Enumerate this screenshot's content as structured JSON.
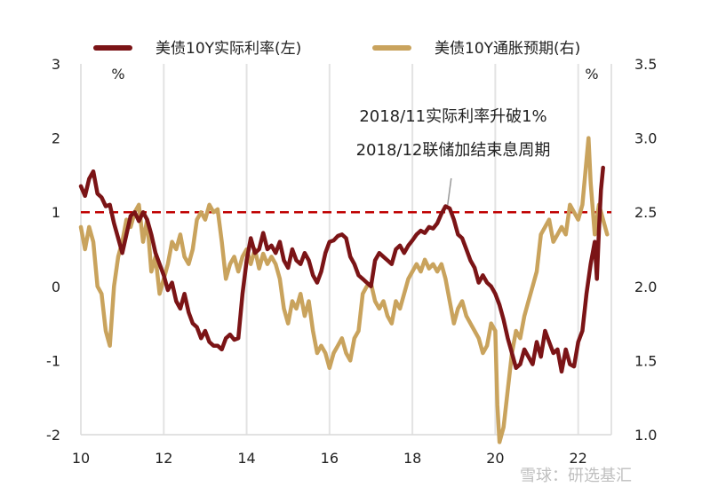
{
  "chart_data": {
    "type": "line",
    "title": "",
    "xlabel": "",
    "x_ticks": [
      "10",
      "12",
      "14",
      "16",
      "18",
      "20",
      "22"
    ],
    "xlim": [
      2010,
      2022.8
    ],
    "y_left": {
      "unit": "%",
      "ylim": [
        -2,
        3
      ],
      "ticks": [
        "3",
        "2",
        "1",
        "0",
        "-1",
        "-2"
      ]
    },
    "y_right": {
      "unit": "%",
      "ylim": [
        1.0,
        3.5
      ],
      "ticks": [
        "3.5",
        "3.0",
        "2.5",
        "2.0",
        "1.5",
        "1.0"
      ]
    },
    "grid": "vertical",
    "legend_position": "top",
    "reference_line": {
      "axis": "left",
      "value": 1.0,
      "color": "#c00000",
      "style": "dashed"
    },
    "annotation": {
      "lines": [
        "2018/11实际利率升破1%",
        "2018/12联储加结束息周期"
      ],
      "point": [
        2018.85,
        1.05
      ]
    },
    "watermark": "雪球：研选基汇",
    "series": [
      {
        "name": "美债10Y实际利率(左)",
        "axis": "left",
        "color": "#7b1416",
        "points": [
          [
            2010.0,
            1.35
          ],
          [
            2010.1,
            1.22
          ],
          [
            2010.2,
            1.45
          ],
          [
            2010.3,
            1.55
          ],
          [
            2010.4,
            1.25
          ],
          [
            2010.5,
            1.2
          ],
          [
            2010.6,
            1.08
          ],
          [
            2010.7,
            1.1
          ],
          [
            2010.8,
            0.85
          ],
          [
            2010.9,
            0.65
          ],
          [
            2011.0,
            0.45
          ],
          [
            2011.1,
            0.7
          ],
          [
            2011.2,
            0.95
          ],
          [
            2011.3,
            1.0
          ],
          [
            2011.4,
            0.88
          ],
          [
            2011.5,
            1.0
          ],
          [
            2011.6,
            0.9
          ],
          [
            2011.7,
            0.7
          ],
          [
            2011.8,
            0.45
          ],
          [
            2011.9,
            0.3
          ],
          [
            2012.0,
            0.15
          ],
          [
            2012.1,
            -0.05
          ],
          [
            2012.2,
            0.05
          ],
          [
            2012.3,
            -0.2
          ],
          [
            2012.4,
            -0.3
          ],
          [
            2012.5,
            -0.1
          ],
          [
            2012.6,
            -0.35
          ],
          [
            2012.7,
            -0.5
          ],
          [
            2012.8,
            -0.55
          ],
          [
            2012.9,
            -0.7
          ],
          [
            2013.0,
            -0.6
          ],
          [
            2013.1,
            -0.75
          ],
          [
            2013.2,
            -0.8
          ],
          [
            2013.3,
            -0.8
          ],
          [
            2013.4,
            -0.85
          ],
          [
            2013.5,
            -0.7
          ],
          [
            2013.6,
            -0.65
          ],
          [
            2013.7,
            -0.72
          ],
          [
            2013.8,
            -0.7
          ],
          [
            2013.9,
            -0.1
          ],
          [
            2014.0,
            0.35
          ],
          [
            2014.1,
            0.65
          ],
          [
            2014.2,
            0.45
          ],
          [
            2014.3,
            0.5
          ],
          [
            2014.4,
            0.72
          ],
          [
            2014.5,
            0.5
          ],
          [
            2014.6,
            0.55
          ],
          [
            2014.7,
            0.45
          ],
          [
            2014.8,
            0.6
          ],
          [
            2014.9,
            0.35
          ],
          [
            2015.0,
            0.25
          ],
          [
            2015.1,
            0.5
          ],
          [
            2015.2,
            0.35
          ],
          [
            2015.3,
            0.3
          ],
          [
            2015.4,
            0.45
          ],
          [
            2015.5,
            0.35
          ],
          [
            2015.6,
            0.15
          ],
          [
            2015.7,
            0.05
          ],
          [
            2015.8,
            0.2
          ],
          [
            2015.9,
            0.45
          ],
          [
            2016.0,
            0.6
          ],
          [
            2016.1,
            0.62
          ],
          [
            2016.2,
            0.68
          ],
          [
            2016.3,
            0.7
          ],
          [
            2016.4,
            0.65
          ],
          [
            2016.5,
            0.4
          ],
          [
            2016.6,
            0.3
          ],
          [
            2016.7,
            0.15
          ],
          [
            2016.8,
            0.1
          ],
          [
            2016.9,
            0.05
          ],
          [
            2017.0,
            0.0
          ],
          [
            2017.1,
            0.35
          ],
          [
            2017.2,
            0.45
          ],
          [
            2017.3,
            0.4
          ],
          [
            2017.4,
            0.35
          ],
          [
            2017.5,
            0.3
          ],
          [
            2017.6,
            0.5
          ],
          [
            2017.7,
            0.55
          ],
          [
            2017.8,
            0.45
          ],
          [
            2017.9,
            0.55
          ],
          [
            2018.0,
            0.62
          ],
          [
            2018.1,
            0.7
          ],
          [
            2018.2,
            0.75
          ],
          [
            2018.3,
            0.72
          ],
          [
            2018.4,
            0.8
          ],
          [
            2018.5,
            0.78
          ],
          [
            2018.6,
            0.85
          ],
          [
            2018.7,
            0.98
          ],
          [
            2018.8,
            1.08
          ],
          [
            2018.9,
            1.05
          ],
          [
            2019.0,
            0.9
          ],
          [
            2019.1,
            0.7
          ],
          [
            2019.2,
            0.65
          ],
          [
            2019.3,
            0.5
          ],
          [
            2019.4,
            0.35
          ],
          [
            2019.5,
            0.25
          ],
          [
            2019.6,
            0.05
          ],
          [
            2019.7,
            0.15
          ],
          [
            2019.8,
            0.05
          ],
          [
            2019.9,
            0.0
          ],
          [
            2020.0,
            -0.1
          ],
          [
            2020.1,
            -0.25
          ],
          [
            2020.2,
            -0.45
          ],
          [
            2020.3,
            -0.7
          ],
          [
            2020.4,
            -0.9
          ],
          [
            2020.5,
            -1.1
          ],
          [
            2020.6,
            -1.05
          ],
          [
            2020.7,
            -0.85
          ],
          [
            2020.8,
            -0.95
          ],
          [
            2020.9,
            -1.05
          ],
          [
            2021.0,
            -0.75
          ],
          [
            2021.1,
            -0.95
          ],
          [
            2021.2,
            -0.6
          ],
          [
            2021.3,
            -0.75
          ],
          [
            2021.4,
            -0.9
          ],
          [
            2021.5,
            -0.85
          ],
          [
            2021.6,
            -1.15
          ],
          [
            2021.7,
            -0.85
          ],
          [
            2021.8,
            -1.05
          ],
          [
            2021.9,
            -1.08
          ],
          [
            2022.0,
            -0.75
          ],
          [
            2022.1,
            -0.6
          ],
          [
            2022.2,
            -0.1
          ],
          [
            2022.3,
            0.3
          ],
          [
            2022.4,
            0.6
          ],
          [
            2022.45,
            0.1
          ],
          [
            2022.5,
            0.75
          ],
          [
            2022.55,
            1.3
          ],
          [
            2022.6,
            1.6
          ]
        ]
      },
      {
        "name": "美债10Y通胀预期(右)",
        "axis": "right",
        "color": "#c9a35d",
        "points": [
          [
            2010.0,
            2.4
          ],
          [
            2010.1,
            2.25
          ],
          [
            2010.2,
            2.4
          ],
          [
            2010.3,
            2.3
          ],
          [
            2010.4,
            2.0
          ],
          [
            2010.5,
            1.95
          ],
          [
            2010.6,
            1.7
          ],
          [
            2010.7,
            1.6
          ],
          [
            2010.8,
            2.0
          ],
          [
            2010.9,
            2.2
          ],
          [
            2011.0,
            2.3
          ],
          [
            2011.1,
            2.45
          ],
          [
            2011.2,
            2.4
          ],
          [
            2011.3,
            2.5
          ],
          [
            2011.4,
            2.55
          ],
          [
            2011.5,
            2.3
          ],
          [
            2011.6,
            2.45
          ],
          [
            2011.7,
            2.1
          ],
          [
            2011.8,
            2.2
          ],
          [
            2011.9,
            1.95
          ],
          [
            2012.0,
            2.05
          ],
          [
            2012.1,
            2.15
          ],
          [
            2012.2,
            2.3
          ],
          [
            2012.3,
            2.25
          ],
          [
            2012.4,
            2.35
          ],
          [
            2012.5,
            2.2
          ],
          [
            2012.6,
            2.15
          ],
          [
            2012.7,
            2.25
          ],
          [
            2012.8,
            2.45
          ],
          [
            2012.9,
            2.5
          ],
          [
            2013.0,
            2.45
          ],
          [
            2013.1,
            2.55
          ],
          [
            2013.2,
            2.5
          ],
          [
            2013.3,
            2.52
          ],
          [
            2013.4,
            2.3
          ],
          [
            2013.5,
            2.05
          ],
          [
            2013.6,
            2.15
          ],
          [
            2013.7,
            2.2
          ],
          [
            2013.8,
            2.1
          ],
          [
            2013.9,
            2.2
          ],
          [
            2014.0,
            2.25
          ],
          [
            2014.1,
            2.15
          ],
          [
            2014.2,
            2.25
          ],
          [
            2014.3,
            2.12
          ],
          [
            2014.4,
            2.22
          ],
          [
            2014.5,
            2.15
          ],
          [
            2014.6,
            2.2
          ],
          [
            2014.7,
            2.15
          ],
          [
            2014.8,
            2.05
          ],
          [
            2014.9,
            1.85
          ],
          [
            2015.0,
            1.75
          ],
          [
            2015.1,
            1.9
          ],
          [
            2015.2,
            1.85
          ],
          [
            2015.3,
            1.95
          ],
          [
            2015.4,
            1.8
          ],
          [
            2015.5,
            1.9
          ],
          [
            2015.6,
            1.7
          ],
          [
            2015.7,
            1.55
          ],
          [
            2015.8,
            1.6
          ],
          [
            2015.9,
            1.55
          ],
          [
            2016.0,
            1.45
          ],
          [
            2016.1,
            1.55
          ],
          [
            2016.2,
            1.6
          ],
          [
            2016.3,
            1.65
          ],
          [
            2016.4,
            1.55
          ],
          [
            2016.5,
            1.5
          ],
          [
            2016.6,
            1.65
          ],
          [
            2016.7,
            1.7
          ],
          [
            2016.8,
            1.95
          ],
          [
            2016.9,
            2.0
          ],
          [
            2017.0,
            2.02
          ],
          [
            2017.1,
            1.9
          ],
          [
            2017.2,
            1.85
          ],
          [
            2017.3,
            1.9
          ],
          [
            2017.4,
            1.8
          ],
          [
            2017.5,
            1.75
          ],
          [
            2017.6,
            1.9
          ],
          [
            2017.7,
            1.85
          ],
          [
            2017.8,
            1.95
          ],
          [
            2017.9,
            2.05
          ],
          [
            2018.0,
            2.1
          ],
          [
            2018.1,
            2.15
          ],
          [
            2018.2,
            2.1
          ],
          [
            2018.3,
            2.18
          ],
          [
            2018.4,
            2.12
          ],
          [
            2018.5,
            2.15
          ],
          [
            2018.6,
            2.1
          ],
          [
            2018.7,
            2.15
          ],
          [
            2018.8,
            2.05
          ],
          [
            2018.9,
            1.9
          ],
          [
            2019.0,
            1.75
          ],
          [
            2019.1,
            1.85
          ],
          [
            2019.2,
            1.9
          ],
          [
            2019.3,
            1.8
          ],
          [
            2019.4,
            1.75
          ],
          [
            2019.5,
            1.7
          ],
          [
            2019.6,
            1.65
          ],
          [
            2019.7,
            1.55
          ],
          [
            2019.8,
            1.6
          ],
          [
            2019.9,
            1.75
          ],
          [
            2020.0,
            1.7
          ],
          [
            2020.05,
            1.2
          ],
          [
            2020.1,
            0.95
          ],
          [
            2020.2,
            1.05
          ],
          [
            2020.3,
            1.3
          ],
          [
            2020.4,
            1.55
          ],
          [
            2020.5,
            1.7
          ],
          [
            2020.6,
            1.65
          ],
          [
            2020.7,
            1.8
          ],
          [
            2020.8,
            1.9
          ],
          [
            2020.9,
            2.0
          ],
          [
            2021.0,
            2.1
          ],
          [
            2021.1,
            2.35
          ],
          [
            2021.2,
            2.4
          ],
          [
            2021.3,
            2.45
          ],
          [
            2021.4,
            2.3
          ],
          [
            2021.5,
            2.35
          ],
          [
            2021.6,
            2.4
          ],
          [
            2021.7,
            2.35
          ],
          [
            2021.8,
            2.55
          ],
          [
            2021.9,
            2.5
          ],
          [
            2022.0,
            2.45
          ],
          [
            2022.1,
            2.55
          ],
          [
            2022.2,
            2.85
          ],
          [
            2022.25,
            3.0
          ],
          [
            2022.3,
            2.7
          ],
          [
            2022.4,
            2.35
          ],
          [
            2022.5,
            2.55
          ],
          [
            2022.6,
            2.45
          ],
          [
            2022.7,
            2.35
          ]
        ]
      }
    ]
  }
}
